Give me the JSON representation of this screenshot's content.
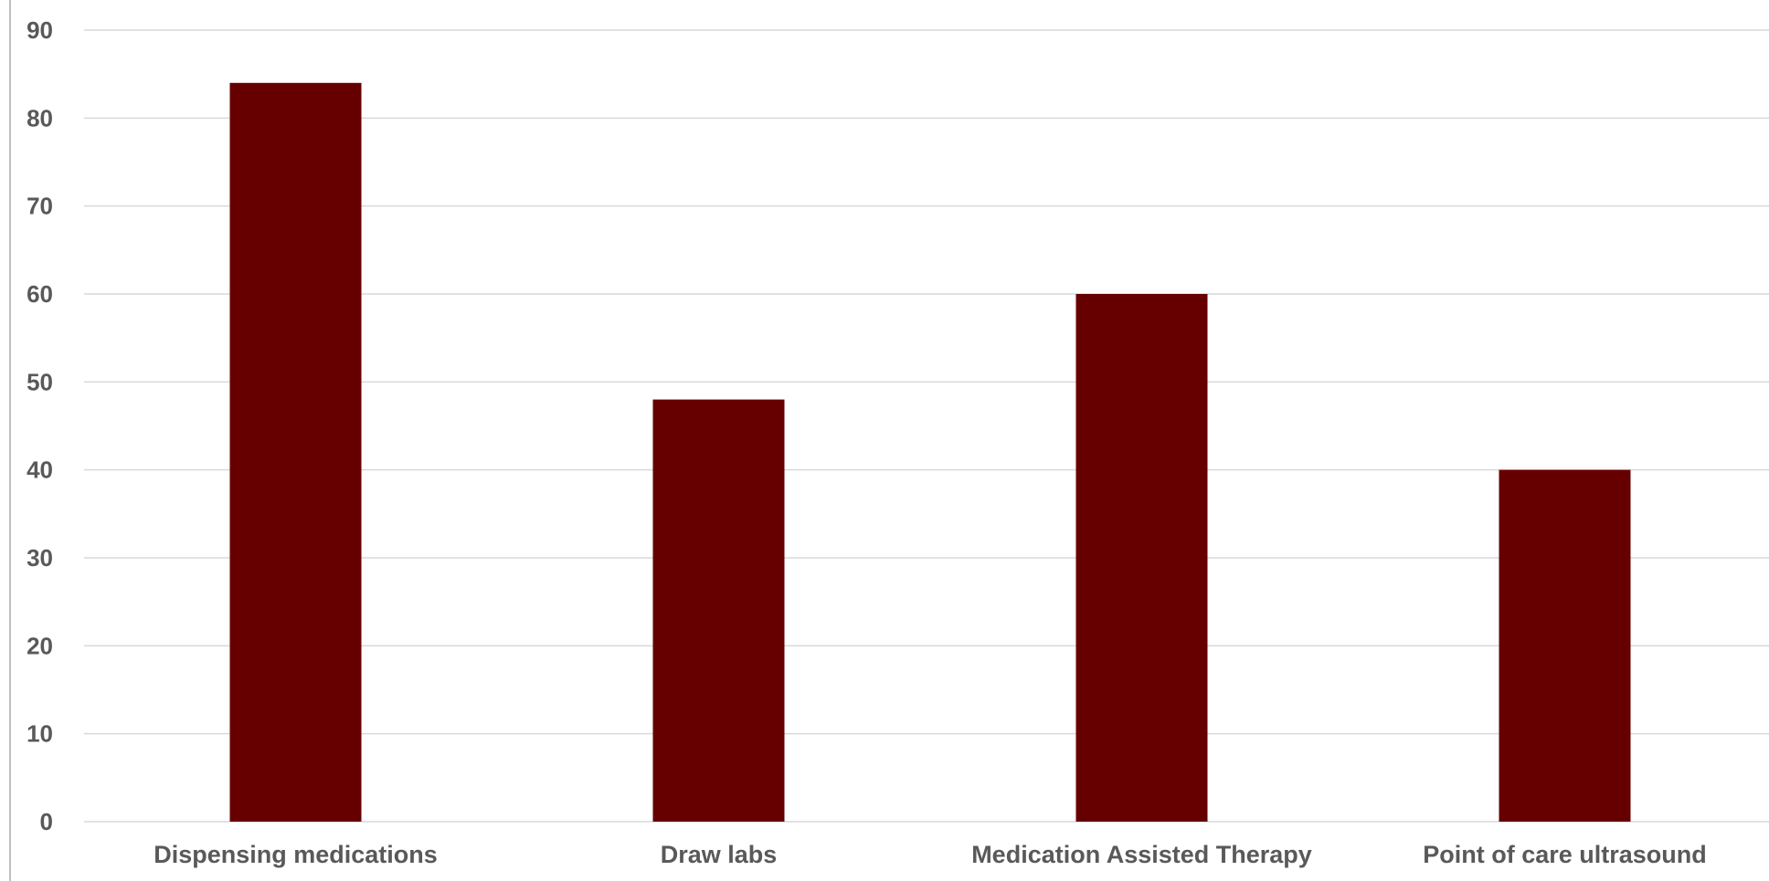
{
  "chart_data": {
    "type": "bar",
    "title": "",
    "xlabel": "",
    "ylabel": "",
    "categories": [
      "Dispensing medications",
      "Draw labs",
      "Medication Assisted Therapy",
      "Point of care ultrasound"
    ],
    "values": [
      84,
      48,
      60,
      40
    ],
    "ylim": [
      0,
      90
    ],
    "yticks": [
      0,
      10,
      20,
      30,
      40,
      50,
      60,
      70,
      80,
      90
    ],
    "grid": true,
    "legend": "none",
    "bar_color": "#660000",
    "grid_color": "#d9d9d9",
    "axis_color": "#bfbfbf",
    "label_color": "#595959"
  }
}
